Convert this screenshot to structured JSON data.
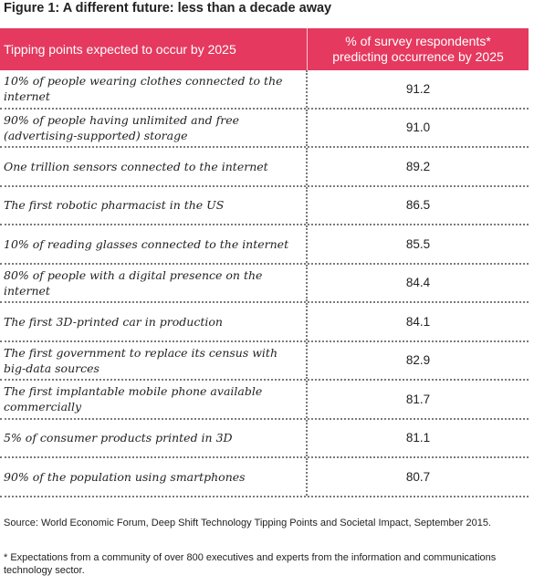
{
  "figure": {
    "title": "Figure 1: A different future: less than a decade away"
  },
  "table": {
    "header": {
      "left": "Tipping points expected to occur by 2025",
      "right_line1": "% of survey respondents*",
      "right_line2": "predicting occurrence by 2025"
    },
    "rows": [
      {
        "label": "10% of people wearing clothes connected to the internet",
        "value": "91.2"
      },
      {
        "label": "90% of people having unlimited and free (advertising-supported) storage",
        "value": "91.0"
      },
      {
        "label": "One trillion sensors connected to the internet",
        "value": "89.2"
      },
      {
        "label": "The first robotic pharmacist in the US",
        "value": "86.5"
      },
      {
        "label": "10% of reading glasses connected to the internet",
        "value": "85.5"
      },
      {
        "label": "80% of people with a digital presence on the internet",
        "value": "84.4"
      },
      {
        "label": "The first 3D-printed car in production",
        "value": "84.1"
      },
      {
        "label": "The first government to replace its census with big-data sources",
        "value": "82.9"
      },
      {
        "label": "The first implantable mobile phone available commercially",
        "value": "81.7"
      },
      {
        "label": "5% of consumer products printed in 3D",
        "value": "81.1"
      },
      {
        "label": "90% of the population using smartphones",
        "value": "80.7"
      }
    ]
  },
  "notes": {
    "source": "Source: World Economic Forum, Deep Shift Technology Tipping Points and Societal Impact, September 2015.",
    "footnote": "* Expectations from a community of over 800 executives and experts from the information and communications technology sector."
  },
  "colors": {
    "header_bg": "#e5395f",
    "header_text": "#ffffff",
    "divider": "#7a7a7a"
  }
}
